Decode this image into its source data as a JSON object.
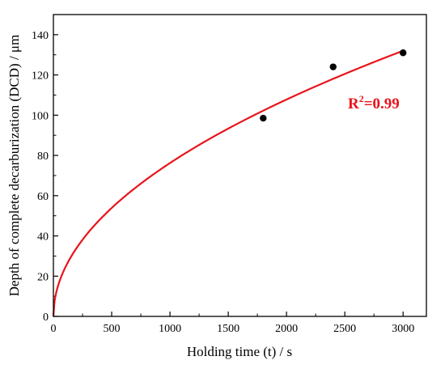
{
  "chart_data": {
    "type": "scatter",
    "xlabel": "Holding time (t) / s",
    "ylabel": "Depth of complete decarburization (DCD) / μm",
    "xlim": [
      0,
      3200
    ],
    "ylim": [
      0,
      150
    ],
    "x_ticks": [
      0,
      500,
      1000,
      1500,
      2000,
      2500,
      3000
    ],
    "y_ticks": [
      0,
      20,
      40,
      60,
      80,
      100,
      120,
      140
    ],
    "grid": false,
    "series": [
      {
        "kind": "scatter",
        "color": "#000000",
        "points": [
          {
            "x": 1800,
            "y": 98.5
          },
          {
            "x": 2400,
            "y": 124
          },
          {
            "x": 3000,
            "y": 131
          }
        ]
      },
      {
        "kind": "fit-line",
        "color": "#e8141b",
        "model": "y = a * t^0.5",
        "a": 2.41,
        "x_range": [
          0,
          3000
        ]
      }
    ],
    "annotation": {
      "base": "R",
      "sup": "2",
      "rest": "=0.99",
      "color": "#e8141b"
    }
  }
}
